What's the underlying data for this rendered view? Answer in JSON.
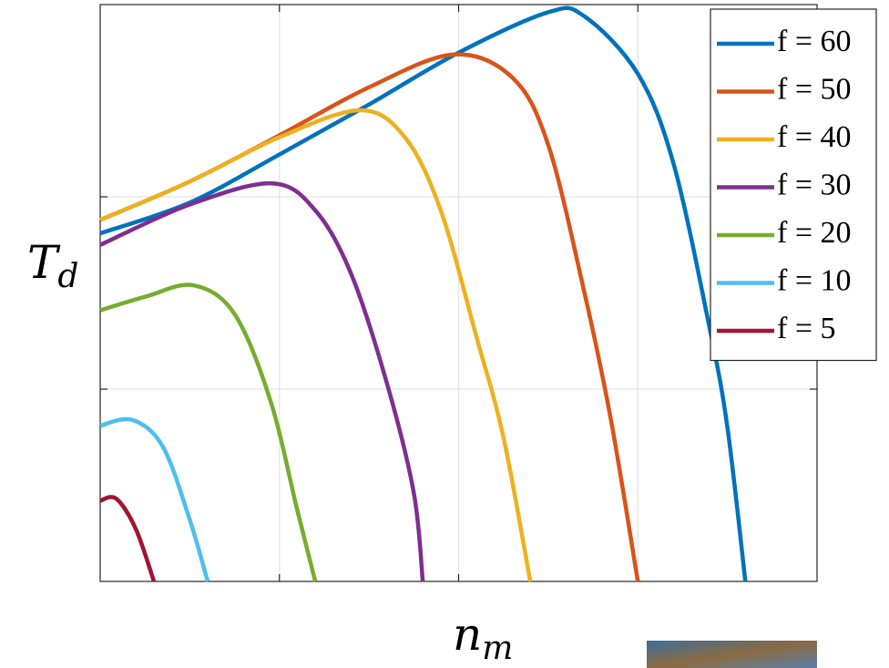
{
  "chart_data": {
    "type": "line",
    "ylabel": {
      "symbol": "T",
      "subscript": "d"
    },
    "xlabel": {
      "symbol": "n",
      "subscript": "m"
    },
    "xlim": [
      0,
      4
    ],
    "ylim": [
      0,
      3
    ],
    "grid": true,
    "legend": "upper right",
    "series": [
      {
        "name": "f = 60",
        "color": "#0072bd",
        "x": [
          0,
          0.5,
          1.0,
          1.5,
          2.0,
          2.5,
          2.7,
          3.0,
          3.2,
          3.4,
          3.5,
          3.6
        ],
        "values": [
          1.81,
          1.97,
          2.22,
          2.48,
          2.75,
          2.96,
          2.94,
          2.64,
          2.17,
          1.32,
          0.8,
          0
        ]
      },
      {
        "name": "f = 50",
        "color": "#d95319",
        "x": [
          0,
          0.5,
          1.0,
          1.5,
          1.97,
          2.3,
          2.5,
          2.7,
          2.85,
          3.0
        ],
        "values": [
          1.88,
          2.08,
          2.32,
          2.57,
          2.74,
          2.62,
          2.27,
          1.51,
          0.84,
          0
        ]
      },
      {
        "name": "f = 40",
        "color": "#edb120",
        "x": [
          0,
          0.5,
          1.0,
          1.45,
          1.7,
          1.9,
          2.1,
          2.25,
          2.4
        ],
        "values": [
          1.88,
          2.08,
          2.31,
          2.45,
          2.31,
          1.93,
          1.27,
          0.75,
          0
        ]
      },
      {
        "name": "f = 30",
        "color": "#7e2f8e",
        "x": [
          0,
          0.5,
          0.96,
          1.2,
          1.4,
          1.6,
          1.75,
          1.8
        ],
        "values": [
          1.75,
          1.96,
          2.07,
          1.93,
          1.6,
          1.03,
          0.46,
          0
        ]
      },
      {
        "name": "f = 20",
        "color": "#77ac30",
        "x": [
          0,
          0.25,
          0.52,
          0.75,
          0.95,
          1.1,
          1.2
        ],
        "values": [
          1.41,
          1.48,
          1.54,
          1.39,
          0.94,
          0.37,
          0
        ]
      },
      {
        "name": "f = 10",
        "color": "#4dbeee",
        "x": [
          0,
          0.18,
          0.35,
          0.5,
          0.6
        ],
        "values": [
          0.81,
          0.84,
          0.7,
          0.32,
          0
        ]
      },
      {
        "name": "f = 5",
        "color": "#a2142f",
        "x": [
          0,
          0.09,
          0.2,
          0.3
        ],
        "values": [
          0.42,
          0.43,
          0.27,
          0
        ]
      }
    ]
  }
}
